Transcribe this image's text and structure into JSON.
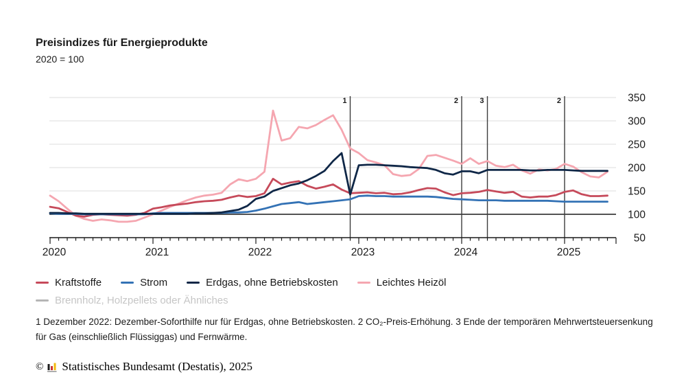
{
  "header": {
    "title": "Preisindizes für Energieprodukte",
    "subtitle": "2020 = 100"
  },
  "chart_data": {
    "type": "line",
    "x_start": "2020-01",
    "x_interval": "monthly",
    "x_tick_years": [
      "2020",
      "2021",
      "2022",
      "2023",
      "2024",
      "2025"
    ],
    "ylim": [
      50,
      350
    ],
    "yticks": [
      350,
      300,
      250,
      200,
      150,
      100,
      50
    ],
    "baseline_value": 100,
    "grid": true,
    "legend_position": "bottom",
    "annotations": [
      {
        "label": "1",
        "month_index": 35,
        "date": "2022-12"
      },
      {
        "label": "2",
        "month_index": 48,
        "date": "2024-01"
      },
      {
        "label": "3",
        "month_index": 51,
        "date": "2024-04"
      },
      {
        "label": "2",
        "month_index": 60,
        "date": "2025-01"
      }
    ],
    "series": [
      {
        "name": "Leichtes Heizöl",
        "color": "#f5a6b0",
        "values": [
          140,
          128,
          112,
          97,
          90,
          86,
          89,
          87,
          84,
          84,
          86,
          93,
          100,
          108,
          116,
          123,
          130,
          136,
          140,
          142,
          146,
          164,
          175,
          171,
          176,
          191,
          322,
          258,
          263,
          287,
          284,
          291,
          302,
          312,
          281,
          241,
          231,
          216,
          211,
          205,
          186,
          182,
          184,
          197,
          225,
          227,
          221,
          215,
          208,
          220,
          208,
          214,
          204,
          201,
          206,
          194,
          187,
          196,
          194,
          197,
          208,
          202,
          190,
          181,
          179,
          191
        ]
      },
      {
        "name": "Kraftstoffe",
        "color": "#c64a5a",
        "values": [
          116,
          113,
          105,
          97,
          95,
          99,
          100,
          99,
          98,
          97,
          99,
          103,
          112,
          115,
          119,
          121,
          123,
          126,
          128,
          129,
          131,
          136,
          140,
          137,
          139,
          145,
          176,
          164,
          168,
          171,
          161,
          155,
          159,
          164,
          153,
          145,
          146,
          147,
          145,
          146,
          143,
          144,
          147,
          152,
          156,
          155,
          147,
          141,
          145,
          146,
          148,
          152,
          149,
          146,
          148,
          138,
          136,
          138,
          138,
          141,
          148,
          151,
          143,
          139,
          139,
          140
        ]
      },
      {
        "name": "Strom",
        "color": "#3372b5",
        "values": [
          102,
          101,
          101,
          101,
          100,
          100,
          100,
          100,
          100,
          100,
          100,
          100,
          102,
          103,
          103,
          103,
          103,
          103,
          103,
          103,
          103,
          104,
          104,
          105,
          108,
          112,
          117,
          122,
          124,
          126,
          122,
          124,
          126,
          128,
          130,
          132,
          139,
          140,
          139,
          139,
          138,
          138,
          138,
          138,
          138,
          137,
          135,
          133,
          132,
          131,
          130,
          130,
          130,
          129,
          129,
          129,
          129,
          129,
          129,
          128,
          127,
          127,
          127,
          127,
          127,
          127
        ]
      },
      {
        "name": "Erdgas, ohne Betriebskosten",
        "color": "#0f2747",
        "values": [
          103,
          103,
          102,
          102,
          101,
          101,
          101,
          101,
          101,
          101,
          101,
          101,
          101,
          101,
          101,
          101,
          101,
          102,
          102,
          103,
          104,
          107,
          110,
          118,
          133,
          138,
          150,
          156,
          162,
          166,
          173,
          182,
          193,
          214,
          231,
          142,
          205,
          206,
          206,
          205,
          204,
          203,
          201,
          200,
          199,
          195,
          188,
          185,
          192,
          192,
          188,
          195,
          195,
          195,
          195,
          195,
          194,
          194,
          195,
          195,
          195,
          194,
          193,
          193,
          193,
          193
        ]
      }
    ]
  },
  "legend": {
    "rows": [
      [
        {
          "label": "Kraftstoffe",
          "color": "#c64a5a",
          "disabled": false
        },
        {
          "label": "Strom",
          "color": "#3372b5",
          "disabled": false
        },
        {
          "label": "Erdgas, ohne Betriebskosten",
          "color": "#0f2747",
          "disabled": false
        },
        {
          "label": "Leichtes Heizöl",
          "color": "#f5a6b0",
          "disabled": false
        }
      ],
      [
        {
          "label": "Brennholz, Holzpellets oder Ähnliches",
          "color": "#b5b5b5",
          "disabled": true
        }
      ]
    ]
  },
  "footnote": "1 Dezember 2022: Dezember-Soforthilfe nur für Erdgas, ohne Betriebskosten. 2 CO₂-Preis-Erhöhung. 3 Ende der temporären Mehrwertsteuersenkung für Gas (einschließlich Flüssiggas) und Fernwärme.",
  "footer": {
    "copyright": "©",
    "text": "Statistisches Bundesamt (Destatis), 2025",
    "logo_colors": {
      "bar1": "#1a1a1a",
      "bar2": "#cc3333",
      "bar3": "#f2bb0d",
      "base": "#999999"
    }
  }
}
